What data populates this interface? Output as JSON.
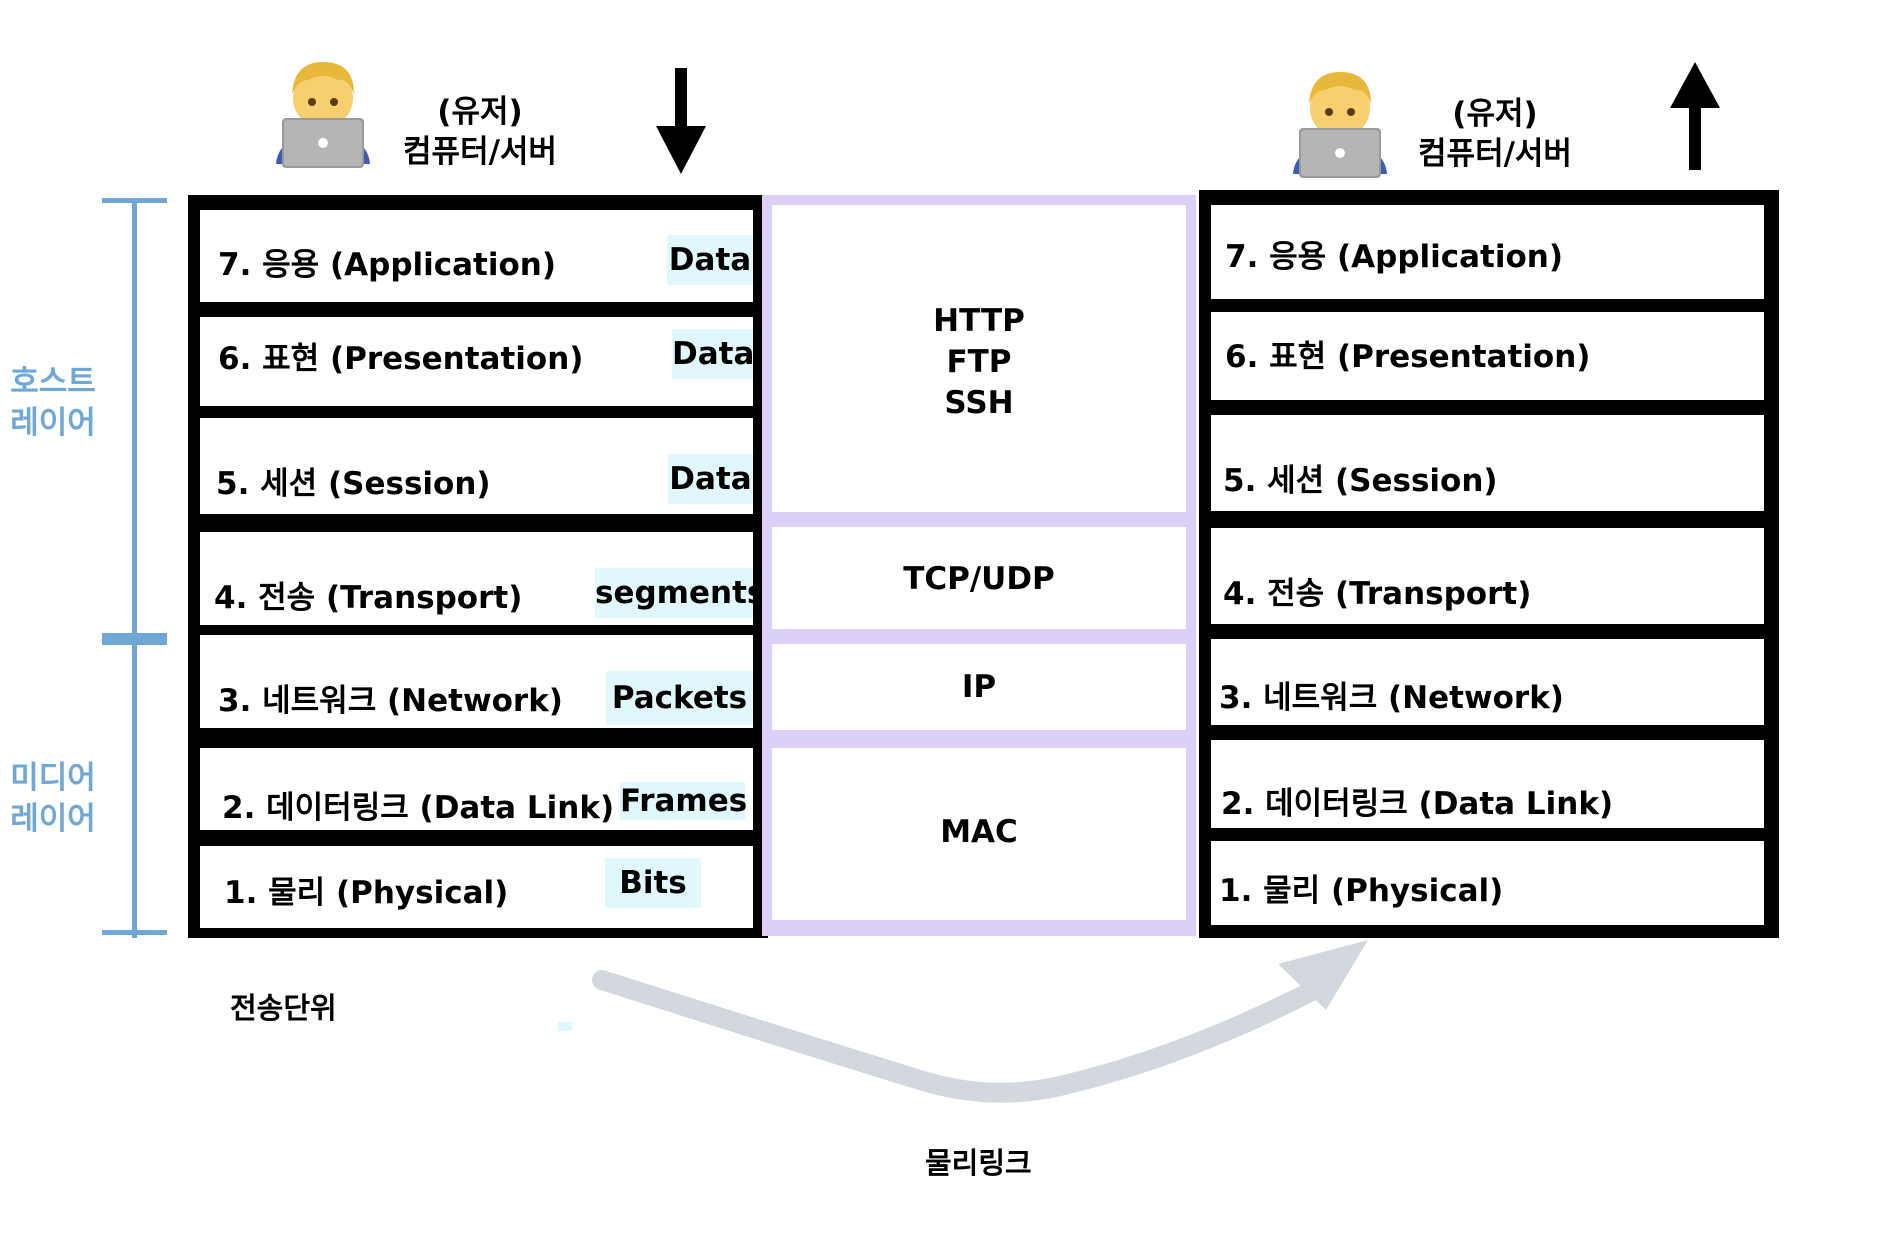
{
  "users": {
    "left": {
      "line1": "(유저)",
      "line2": "컴퓨터/서버"
    },
    "right": {
      "line1": "(유저)",
      "line2": "컴퓨터/서버"
    }
  },
  "icons": {
    "user": "person-with-laptop-icon",
    "down": "arrow-down-icon",
    "up": "arrow-up-icon"
  },
  "left_stack": [
    {
      "label": "7. 응용 (Application)",
      "unit": "Data"
    },
    {
      "label": "6. 표현 (Presentation)",
      "unit": "Data"
    },
    {
      "label": "5. 세션 (Session)",
      "unit": "Data"
    },
    {
      "label": "4. 전송 (Transport)",
      "unit": "segments"
    },
    {
      "label": "3. 네트워크 (Network)",
      "unit": "Packets"
    },
    {
      "label": "2. 데이터링크 (Data Link)",
      "unit": "Frames"
    },
    {
      "label": "1. 물리 (Physical)",
      "unit": "Bits"
    }
  ],
  "right_stack": [
    {
      "label": "7. 응용 (Application)"
    },
    {
      "label": "6. 표현 (Presentation)"
    },
    {
      "label": "5. 세션 (Session)"
    },
    {
      "label": "4. 전송 (Transport)"
    },
    {
      "label": "3. 네트워크 (Network)"
    },
    {
      "label": "2. 데이터링크 (Data Link)"
    },
    {
      "label": "1. 물리 (Physical)"
    }
  ],
  "protocols": {
    "app": [
      "HTTP",
      "FTP",
      "SSH"
    ],
    "transport": "TCP/UDP",
    "network": "IP",
    "link": "MAC"
  },
  "side_labels": {
    "host": [
      "호스트",
      "레이어"
    ],
    "media": [
      "미디어",
      "레이어"
    ]
  },
  "captions": {
    "unit": "전송단위",
    "physical_link": "물리링크"
  },
  "colors": {
    "bracket": "#6fa8d6",
    "unit_bg": "#e0f7fb",
    "protocol_border": "#dcd0f7",
    "curve_arrow": "#d3d8de"
  }
}
